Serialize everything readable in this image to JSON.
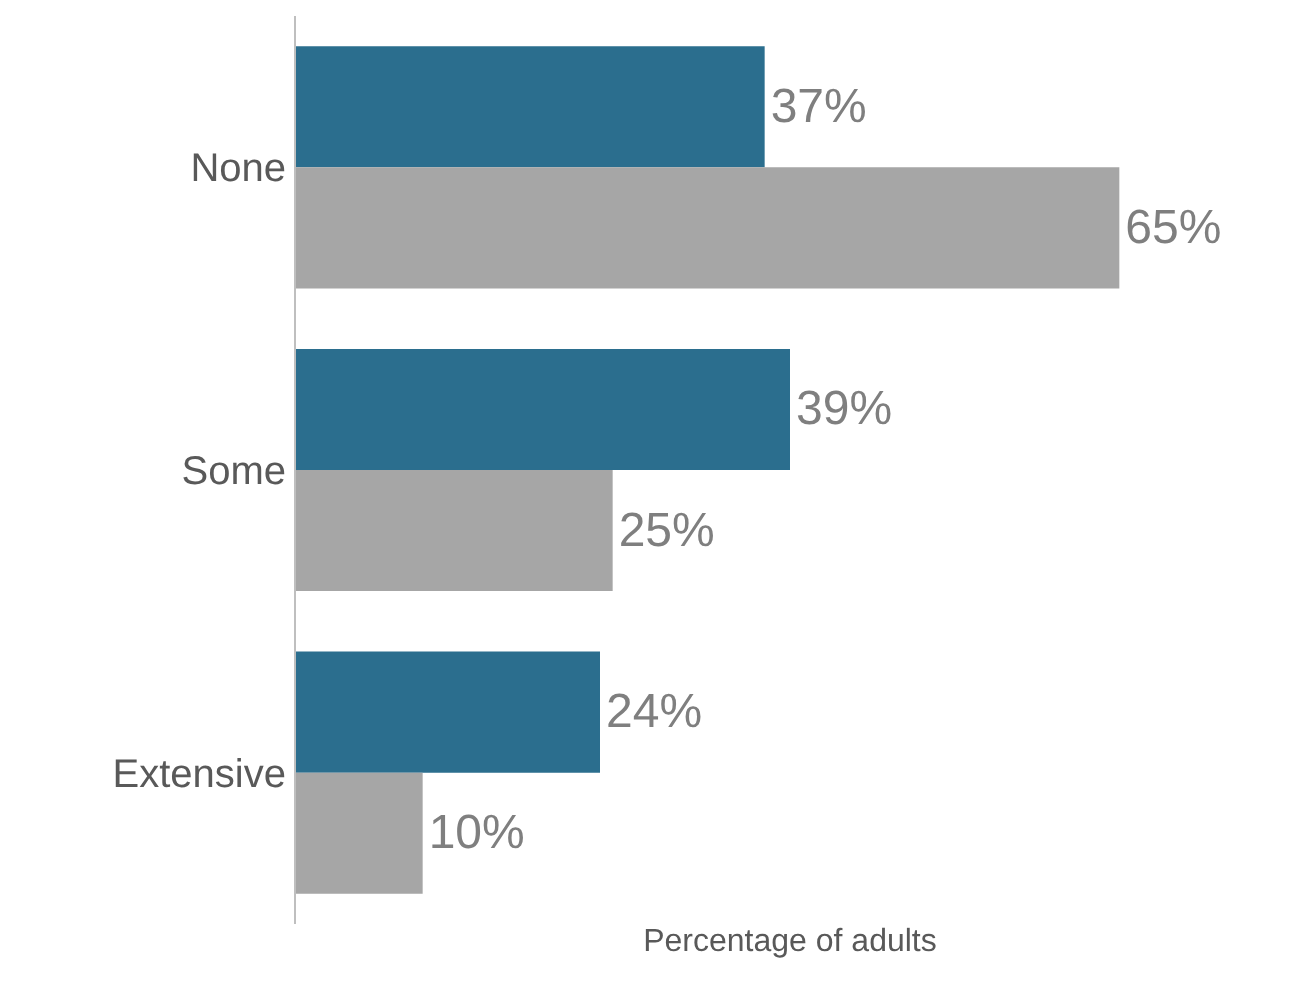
{
  "chart_data": {
    "type": "bar",
    "orientation": "horizontal",
    "xlabel": "Percentage of adults",
    "categories": [
      "None",
      "Some",
      "Extensive"
    ],
    "tick_labels": "y",
    "legend": false,
    "series": [
      {
        "color": "#2b6e8e",
        "values": [
          37,
          39,
          24
        ],
        "value_labels": [
          "37%",
          "39%",
          "24%"
        ]
      },
      {
        "color": "#a6a6a6",
        "values": [
          65,
          25,
          10
        ],
        "value_labels": [
          "65%",
          "25%",
          "10%"
        ]
      }
    ]
  }
}
